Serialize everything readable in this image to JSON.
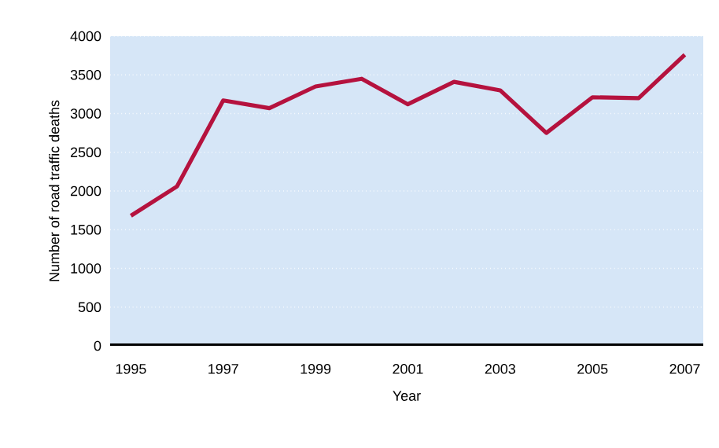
{
  "chart_data": {
    "type": "line",
    "xlabel": "Year",
    "ylabel": "Number of road traffic deaths",
    "x": [
      1995,
      1996,
      1997,
      1998,
      1999,
      2000,
      2001,
      2002,
      2003,
      2004,
      2005,
      2006,
      2007
    ],
    "series": [
      {
        "color": "#b5123e",
        "values": [
          1680,
          2060,
          3170,
          3070,
          3350,
          3450,
          3120,
          3410,
          3300,
          2750,
          3210,
          3200,
          3760
        ]
      }
    ],
    "xlim": [
      1994.55,
      2007.4
    ],
    "ylim": [
      0,
      4000
    ],
    "xticks": [
      1995,
      1997,
      1999,
      2001,
      2003,
      2005,
      2007
    ],
    "yticks": [
      0,
      500,
      1000,
      1500,
      2000,
      2500,
      3000,
      3500,
      4000
    ],
    "grid": "y",
    "marker": "none",
    "line_style": "solid"
  }
}
